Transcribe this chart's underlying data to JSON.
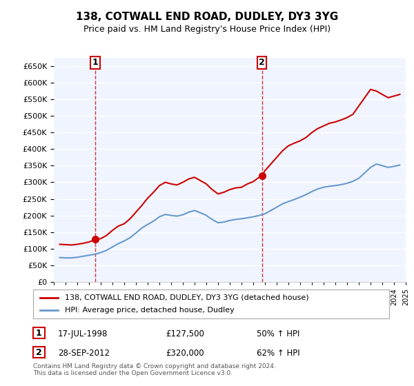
{
  "title_line1": "138, COTWALL END ROAD, DUDLEY, DY3 3YG",
  "title_line2": "Price paid vs. HM Land Registry's House Price Index (HPI)",
  "ylim": [
    0,
    675000
  ],
  "yticks": [
    0,
    50000,
    100000,
    150000,
    200000,
    250000,
    300000,
    350000,
    400000,
    450000,
    500000,
    550000,
    600000,
    650000
  ],
  "background_color": "#f0f4ff",
  "grid_color": "#ffffff",
  "sale1": {
    "year": 1998.54,
    "price": 127500,
    "label": "1",
    "date_str": "17-JUL-1998",
    "pct": "50%"
  },
  "sale2": {
    "year": 2012.74,
    "price": 320000,
    "label": "2",
    "date_str": "28-SEP-2012",
    "pct": "62%"
  },
  "legend_label_red": "138, COTWALL END ROAD, DUDLEY, DY3 3YG (detached house)",
  "legend_label_blue": "HPI: Average price, detached house, Dudley",
  "annotation1_text": "1",
  "annotation2_text": "2",
  "footer": "Contains HM Land Registry data © Crown copyright and database right 2024.\nThis data is licensed under the Open Government Licence v3.0.",
  "red_color": "#cc0000",
  "blue_color": "#6699cc",
  "sale_marker_color": "#cc0000",
  "red_line_data_x": [
    1995.5,
    1996.0,
    1996.5,
    1997.0,
    1997.5,
    1998.0,
    1998.54,
    1999.0,
    1999.5,
    2000.0,
    2000.5,
    2001.0,
    2001.5,
    2002.0,
    2002.5,
    2003.0,
    2003.5,
    2004.0,
    2004.5,
    2005.0,
    2005.5,
    2006.0,
    2006.5,
    2007.0,
    2007.5,
    2008.0,
    2008.5,
    2009.0,
    2009.5,
    2010.0,
    2010.5,
    2011.0,
    2011.5,
    2012.0,
    2012.5,
    2012.74,
    2013.0,
    2013.5,
    2014.0,
    2014.5,
    2015.0,
    2015.5,
    2016.0,
    2016.5,
    2017.0,
    2017.5,
    2018.0,
    2018.5,
    2019.0,
    2019.5,
    2020.0,
    2020.5,
    2021.0,
    2021.5,
    2022.0,
    2022.5,
    2023.0,
    2023.5,
    2024.0,
    2024.5
  ],
  "red_line_data_y": [
    113000,
    112000,
    111000,
    113000,
    116000,
    120000,
    127500,
    130000,
    140000,
    155000,
    168000,
    175000,
    190000,
    210000,
    230000,
    252000,
    270000,
    290000,
    300000,
    295000,
    292000,
    300000,
    310000,
    315000,
    305000,
    295000,
    278000,
    265000,
    270000,
    278000,
    283000,
    285000,
    295000,
    302000,
    315000,
    320000,
    335000,
    355000,
    375000,
    395000,
    410000,
    418000,
    425000,
    435000,
    450000,
    462000,
    470000,
    478000,
    482000,
    488000,
    495000,
    505000,
    530000,
    555000,
    580000,
    575000,
    565000,
    555000,
    560000,
    565000
  ],
  "blue_line_data_x": [
    1995.5,
    1996.0,
    1996.5,
    1997.0,
    1997.5,
    1998.0,
    1998.5,
    1999.0,
    1999.5,
    2000.0,
    2000.5,
    2001.0,
    2001.5,
    2002.0,
    2002.5,
    2003.0,
    2003.5,
    2004.0,
    2004.5,
    2005.0,
    2005.5,
    2006.0,
    2006.5,
    2007.0,
    2007.5,
    2008.0,
    2008.5,
    2009.0,
    2009.5,
    2010.0,
    2010.5,
    2011.0,
    2011.5,
    2012.0,
    2012.5,
    2013.0,
    2013.5,
    2014.0,
    2014.5,
    2015.0,
    2015.5,
    2016.0,
    2016.5,
    2017.0,
    2017.5,
    2018.0,
    2018.5,
    2019.0,
    2019.5,
    2020.0,
    2020.5,
    2021.0,
    2021.5,
    2022.0,
    2022.5,
    2023.0,
    2023.5,
    2024.0,
    2024.5
  ],
  "blue_line_data_y": [
    73000,
    72000,
    72000,
    74000,
    77000,
    80000,
    83000,
    88000,
    95000,
    105000,
    115000,
    123000,
    133000,
    147000,
    162000,
    173000,
    183000,
    196000,
    203000,
    200000,
    198000,
    202000,
    210000,
    215000,
    208000,
    200000,
    188000,
    178000,
    180000,
    185000,
    188000,
    190000,
    193000,
    196000,
    200000,
    205000,
    215000,
    225000,
    235000,
    242000,
    248000,
    255000,
    263000,
    272000,
    280000,
    285000,
    288000,
    290000,
    293000,
    297000,
    303000,
    312000,
    328000,
    345000,
    355000,
    350000,
    345000,
    348000,
    352000
  ]
}
